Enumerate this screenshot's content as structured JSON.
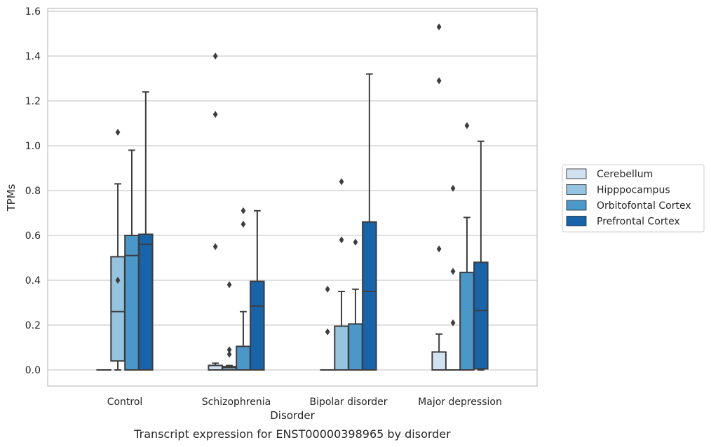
{
  "chart_data": {
    "type": "box",
    "caption": "Transcript expression for ENST00000398965 by disorder",
    "xlabel": "Disorder",
    "ylabel": "TPMs",
    "ylim": [
      -0.07,
      1.61
    ],
    "yticks": [
      0.0,
      0.2,
      0.4,
      0.6,
      0.8,
      1.0,
      1.2,
      1.4,
      1.6
    ],
    "ytick_labels": [
      "0.0",
      "0.2",
      "0.4",
      "0.6",
      "0.8",
      "1.0",
      "1.2",
      "1.4",
      "1.6"
    ],
    "grid": true,
    "legend_position": "right",
    "categories": [
      "Control",
      "Schizophrenia",
      "Bipolar disorder",
      "Major depression"
    ],
    "series": [
      {
        "name": "Cerebellum",
        "color": "#d0e1f2",
        "boxes": [
          {
            "category": "Control",
            "whislo": 0.0,
            "q1": 0.0,
            "med": 0.0,
            "q3": 0.0,
            "whishi": 0.0,
            "fliers": []
          },
          {
            "category": "Schizophrenia",
            "whislo": 0.0,
            "q1": 0.0,
            "med": 0.02,
            "q3": 0.02,
            "whishi": 0.03,
            "fliers": [
              0.55,
              1.14,
              1.4
            ]
          },
          {
            "category": "Bipolar disorder",
            "whislo": 0.0,
            "q1": 0.0,
            "med": 0.0,
            "q3": 0.0,
            "whishi": 0.0,
            "fliers": [
              0.17,
              0.36
            ]
          },
          {
            "category": "Major depression",
            "whislo": 0.0,
            "q1": 0.0,
            "med": 0.0,
            "q3": 0.08,
            "whishi": 0.16,
            "fliers": [
              0.54,
              1.29,
              1.53
            ]
          }
        ]
      },
      {
        "name": "Hipppocampus",
        "color": "#94c4df",
        "boxes": [
          {
            "category": "Control",
            "whislo": 0.0,
            "q1": 0.04,
            "med": 0.26,
            "q3": 0.505,
            "whishi": 0.83,
            "fliers": [
              0.4,
              1.06
            ]
          },
          {
            "category": "Schizophrenia",
            "whislo": 0.0,
            "q1": 0.0,
            "med": 0.01,
            "q3": 0.015,
            "whishi": 0.02,
            "fliers": [
              0.07,
              0.09,
              0.38
            ]
          },
          {
            "category": "Bipolar disorder",
            "whislo": 0.0,
            "q1": 0.0,
            "med": 0.0,
            "q3": 0.195,
            "whishi": 0.35,
            "fliers": [
              0.58,
              0.84
            ]
          },
          {
            "category": "Major depression",
            "whislo": 0.0,
            "q1": 0.0,
            "med": 0.0,
            "q3": 0.0,
            "whishi": 0.0,
            "fliers": [
              0.21,
              0.44,
              0.81
            ]
          }
        ]
      },
      {
        "name": "Orbitofontal Cortex",
        "color": "#4a98c9",
        "boxes": [
          {
            "category": "Control",
            "whislo": 0.0,
            "q1": 0.0,
            "med": 0.51,
            "q3": 0.6,
            "whishi": 0.98,
            "fliers": []
          },
          {
            "category": "Schizophrenia",
            "whislo": 0.0,
            "q1": 0.0,
            "med": 0.0,
            "q3": 0.105,
            "whishi": 0.26,
            "fliers": [
              0.65,
              0.71
            ]
          },
          {
            "category": "Bipolar disorder",
            "whislo": 0.0,
            "q1": 0.0,
            "med": 0.0,
            "q3": 0.205,
            "whishi": 0.36,
            "fliers": [
              0.57
            ]
          },
          {
            "category": "Major depression",
            "whislo": 0.0,
            "q1": 0.0,
            "med": 0.0,
            "q3": 0.435,
            "whishi": 0.68,
            "fliers": [
              1.09
            ]
          }
        ]
      },
      {
        "name": "Prefrontal Cortex",
        "color": "#1764ab",
        "boxes": [
          {
            "category": "Control",
            "whislo": 0.0,
            "q1": 0.0,
            "med": 0.56,
            "q3": 0.605,
            "whishi": 1.24,
            "fliers": []
          },
          {
            "category": "Schizophrenia",
            "whislo": 0.0,
            "q1": 0.0,
            "med": 0.285,
            "q3": 0.395,
            "whishi": 0.71,
            "fliers": []
          },
          {
            "category": "Bipolar disorder",
            "whislo": 0.0,
            "q1": 0.0,
            "med": 0.35,
            "q3": 0.66,
            "whishi": 1.32,
            "fliers": []
          },
          {
            "category": "Major depression",
            "whislo": 0.0,
            "q1": 0.005,
            "med": 0.265,
            "q3": 0.48,
            "whishi": 1.02,
            "fliers": []
          }
        ]
      }
    ]
  }
}
